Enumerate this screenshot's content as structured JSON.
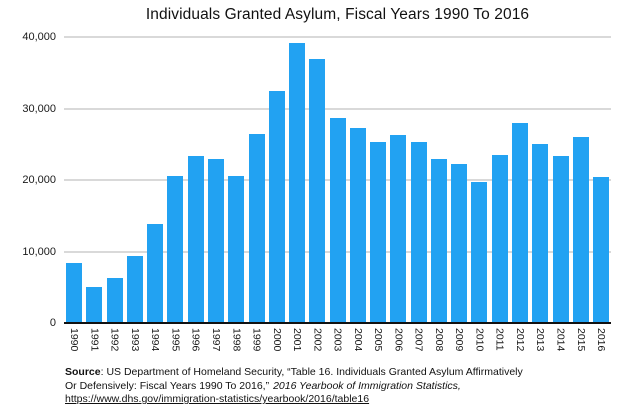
{
  "chart_data": {
    "type": "bar",
    "title": "Individuals Granted Asylum, Fiscal Years 1990 To 2016",
    "categories": [
      "1990",
      "1991",
      "1992",
      "1993",
      "1994",
      "1995",
      "1996",
      "1997",
      "1998",
      "1999",
      "2000",
      "2001",
      "2002",
      "2003",
      "2004",
      "2005",
      "2006",
      "2007",
      "2008",
      "2009",
      "2010",
      "2011",
      "2012",
      "2013",
      "2014",
      "2015",
      "2016"
    ],
    "values": [
      8400,
      5000,
      6300,
      9400,
      13800,
      20500,
      23400,
      22900,
      20500,
      26400,
      32400,
      39200,
      36900,
      28700,
      27300,
      25300,
      26300,
      25300,
      22900,
      22200,
      19700,
      23500,
      28000,
      25100,
      23400,
      26000,
      20400
    ],
    "xlabel": "",
    "ylabel": "",
    "ylim": [
      0,
      40000
    ],
    "yticks": [
      0,
      10000,
      20000,
      30000,
      40000
    ],
    "ytick_labels": [
      "0",
      "10,000",
      "20,000",
      "30,000",
      "40,000"
    ],
    "grid": true,
    "legend": false,
    "bar_color": "#22a2f2",
    "gridline_color": "#d9d9d9",
    "axis_color": "#111111"
  },
  "footer": {
    "source_label": "Source",
    "line1_rest": ": US Department of Homeland Security, “Table 16. Individuals Granted Asylum Affirmatively",
    "line2_normal": "Or Defensively: Fiscal Years 1990 To 2016,”",
    "line2_italic": "2016 Yearbook of Immigration Statistics,",
    "link": "https://www.dhs.gov/immigration-statistics/yearbook/2016/table16"
  }
}
